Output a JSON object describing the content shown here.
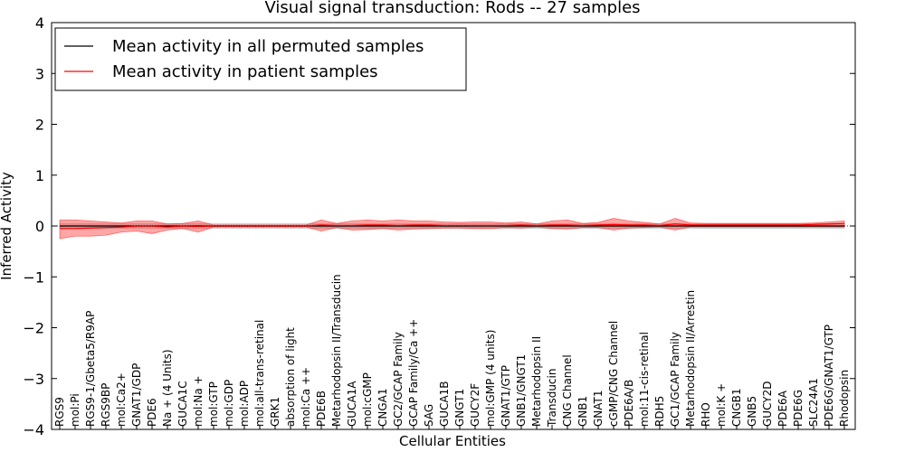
{
  "chart_data": {
    "type": "line",
    "title": "Visual signal transduction: Rods -- 27 samples",
    "xlabel": "Cellular Entities",
    "ylabel": "Inferred Activity",
    "ylim": [
      -4,
      4
    ],
    "yticks": [
      -4,
      -3,
      -2,
      -1,
      0,
      1,
      2,
      3,
      4
    ],
    "ytick_labels": [
      "−4",
      "−3",
      "−2",
      "−1",
      "0",
      "1",
      "2",
      "3",
      "4"
    ],
    "legend_position": "top-left",
    "categories": [
      "RGS9",
      "mol:Pi",
      "RGS9-1/Gbeta5/R9AP",
      "RGS9BP",
      "mol:Ca2+",
      "GNAT1/GDP",
      "PDE6",
      "Na + (4 Units)",
      "GUCA1C",
      "mol:Na +",
      "mol:GTP",
      "mol:GDP",
      "mol:ADP",
      "mol:all-trans-retinal",
      "GRK1",
      "absorption of light",
      "mol:Ca ++",
      "PDE6B",
      "Metarhodopsin II/Transducin",
      "GUCA1A",
      "mol:cGMP",
      "CNGA1",
      "GC2/GCAP Family",
      "GCAP Family/Ca ++",
      "SAG",
      "GUCA1B",
      "GNGT1",
      "GUCY2F",
      "mol:GMP (4 units)",
      "GNAT1/GTP",
      "GNB1/GNGT1",
      "Metarhodopsin II",
      "Transducin",
      "CNG Channel",
      "GNB1",
      "GNAT1",
      "cGMP/CNG Channel",
      "PDE6A/B",
      "mol:11-cis-retinal",
      "RDH5",
      "GC1/GCAP Family",
      "Metarhodopsin II/Arrestin",
      "RHO",
      "mol:K +",
      "CNGB1",
      "GNB5",
      "GUCY2D",
      "PDE6A",
      "PDE6G",
      "SLC24A1",
      "PDE6G/GNAT1/GTP",
      "Rhodopsin"
    ],
    "series": [
      {
        "name": "Mean activity in all permuted samples",
        "color": "#000000",
        "values": [
          0.0,
          0.0,
          0.0,
          0.0,
          0.0,
          0.0,
          0.0,
          0.0,
          0.0,
          0.0,
          0.0,
          0.0,
          0.0,
          0.0,
          0.0,
          0.0,
          0.0,
          0.0,
          0.0,
          0.0,
          0.0,
          0.0,
          0.0,
          0.0,
          0.0,
          0.0,
          0.0,
          0.0,
          0.0,
          0.0,
          0.0,
          0.0,
          0.0,
          0.0,
          0.0,
          0.0,
          0.0,
          0.0,
          0.0,
          0.0,
          0.0,
          0.0,
          0.0,
          0.0,
          0.0,
          0.0,
          0.0,
          0.0,
          0.0,
          0.0,
          0.0,
          0.0
        ],
        "lower": [
          -0.05,
          -0.05,
          -0.05,
          -0.05,
          -0.05,
          -0.05,
          -0.05,
          -0.05,
          -0.05,
          -0.05,
          -0.05,
          -0.05,
          -0.05,
          -0.05,
          -0.05,
          -0.05,
          -0.05,
          -0.05,
          -0.05,
          -0.05,
          -0.05,
          -0.05,
          -0.05,
          -0.05,
          -0.05,
          -0.05,
          -0.05,
          -0.05,
          -0.05,
          -0.05,
          -0.05,
          -0.05,
          -0.05,
          -0.05,
          -0.05,
          -0.05,
          -0.05,
          -0.05,
          -0.05,
          -0.05,
          -0.05,
          -0.05,
          -0.05,
          -0.05,
          -0.05,
          -0.05,
          -0.05,
          -0.05,
          -0.05,
          -0.05,
          -0.05,
          -0.05
        ],
        "upper": [
          0.05,
          0.05,
          0.05,
          0.05,
          0.05,
          0.05,
          0.05,
          0.05,
          0.05,
          0.05,
          0.05,
          0.05,
          0.05,
          0.05,
          0.05,
          0.05,
          0.05,
          0.05,
          0.05,
          0.05,
          0.05,
          0.05,
          0.05,
          0.05,
          0.05,
          0.05,
          0.05,
          0.05,
          0.05,
          0.05,
          0.05,
          0.05,
          0.05,
          0.05,
          0.05,
          0.05,
          0.05,
          0.05,
          0.05,
          0.05,
          0.05,
          0.05,
          0.05,
          0.05,
          0.05,
          0.05,
          0.05,
          0.05,
          0.05,
          0.05,
          0.05,
          0.05
        ],
        "band_color": "#bbbbbb"
      },
      {
        "name": "Mean activity in patient samples",
        "color": "#ff0000",
        "values": [
          -0.05,
          -0.05,
          -0.04,
          -0.03,
          -0.02,
          0.0,
          0.0,
          -0.02,
          0.0,
          -0.01,
          0.0,
          0.0,
          0.0,
          0.0,
          0.0,
          0.0,
          0.0,
          0.02,
          0.01,
          0.01,
          0.02,
          0.02,
          0.01,
          0.02,
          0.02,
          0.01,
          0.01,
          0.01,
          0.01,
          0.01,
          0.02,
          0.01,
          0.02,
          0.02,
          0.01,
          0.02,
          0.03,
          0.02,
          0.02,
          0.01,
          0.04,
          0.02,
          0.02,
          0.02,
          0.02,
          0.02,
          0.02,
          0.02,
          0.02,
          0.03,
          0.04,
          0.05
        ],
        "lower": [
          -0.25,
          -0.2,
          -0.2,
          -0.18,
          -0.12,
          -0.1,
          -0.15,
          -0.08,
          -0.05,
          -0.12,
          -0.02,
          -0.02,
          -0.02,
          -0.02,
          -0.02,
          -0.02,
          -0.02,
          -0.1,
          -0.03,
          -0.08,
          -0.07,
          -0.05,
          -0.08,
          -0.06,
          -0.05,
          -0.04,
          -0.04,
          -0.05,
          -0.05,
          -0.03,
          -0.04,
          -0.02,
          -0.05,
          -0.06,
          -0.03,
          -0.03,
          -0.08,
          -0.04,
          -0.03,
          -0.02,
          -0.08,
          -0.02,
          -0.02,
          -0.02,
          -0.02,
          -0.02,
          -0.02,
          -0.02,
          -0.02,
          -0.02,
          -0.02,
          -0.02
        ],
        "upper": [
          0.12,
          0.12,
          0.1,
          0.08,
          0.06,
          0.1,
          0.1,
          0.04,
          0.05,
          0.1,
          0.02,
          0.02,
          0.02,
          0.02,
          0.02,
          0.02,
          0.02,
          0.12,
          0.05,
          0.1,
          0.12,
          0.1,
          0.12,
          0.1,
          0.1,
          0.08,
          0.07,
          0.08,
          0.08,
          0.06,
          0.08,
          0.04,
          0.1,
          0.12,
          0.05,
          0.07,
          0.15,
          0.1,
          0.07,
          0.04,
          0.15,
          0.06,
          0.05,
          0.05,
          0.05,
          0.05,
          0.05,
          0.05,
          0.05,
          0.06,
          0.08,
          0.1
        ],
        "band_color": "#ff0000"
      }
    ]
  }
}
